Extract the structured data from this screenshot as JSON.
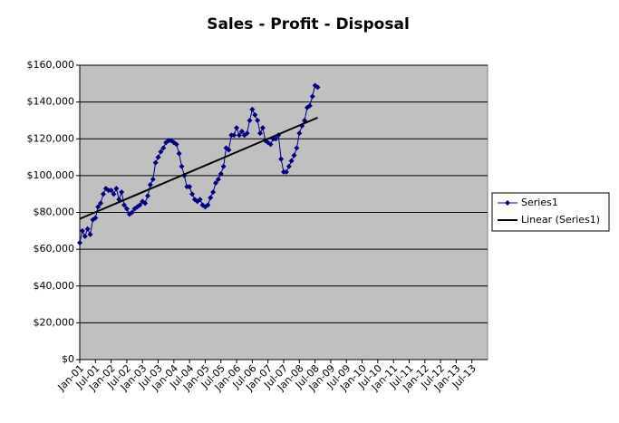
{
  "chart_data": {
    "type": "line",
    "title": "Sales - Profit - Disposal",
    "series": [
      {
        "name": "Series1",
        "color": "#000080",
        "marker": "diamond",
        "x": [
          "Jan-01",
          "Feb-01",
          "Mar-01",
          "Apr-01",
          "May-01",
          "Jun-01",
          "Jul-01",
          "Aug-01",
          "Sep-01",
          "Oct-01",
          "Nov-01",
          "Dec-01",
          "Jan-02",
          "Feb-02",
          "Mar-02",
          "Apr-02",
          "May-02",
          "Jun-02",
          "Jul-02",
          "Aug-02",
          "Sep-02",
          "Oct-02",
          "Nov-02",
          "Dec-02",
          "Jan-03",
          "Feb-03",
          "Mar-03",
          "Apr-03",
          "May-03",
          "Jun-03",
          "Jul-03",
          "Aug-03",
          "Sep-03",
          "Oct-03",
          "Nov-03",
          "Dec-03",
          "Jan-04",
          "Feb-04",
          "Mar-04",
          "Apr-04",
          "May-04",
          "Jun-04",
          "Jul-04",
          "Aug-04",
          "Sep-04",
          "Oct-04",
          "Nov-04",
          "Dec-04",
          "Jan-05",
          "Feb-05",
          "Mar-05",
          "Apr-05",
          "May-05",
          "Jun-05",
          "Jul-05",
          "Aug-05",
          "Sep-05",
          "Oct-05",
          "Nov-05",
          "Dec-05",
          "Jan-06",
          "Feb-06",
          "Mar-06",
          "Apr-06",
          "May-06",
          "Jun-06",
          "Jul-06",
          "Aug-06",
          "Sep-06",
          "Oct-06",
          "Nov-06",
          "Dec-06",
          "Jan-07",
          "Feb-07",
          "Mar-07",
          "Apr-07",
          "May-07",
          "Jun-07",
          "Jul-07",
          "Aug-07",
          "Sep-07",
          "Oct-07",
          "Nov-07",
          "Dec-07",
          "Jan-08",
          "Feb-08",
          "Mar-08",
          "Apr-08",
          "May-08",
          "Jun-08",
          "Jul-08",
          "Aug-08"
        ],
        "values": [
          63500,
          70000,
          67000,
          71000,
          68000,
          76000,
          77000,
          83000,
          85000,
          90000,
          93000,
          92000,
          92000,
          90000,
          93000,
          87000,
          91000,
          84000,
          82000,
          79000,
          80000,
          82000,
          83000,
          84000,
          86000,
          85000,
          89000,
          95000,
          98000,
          107000,
          110000,
          113000,
          115000,
          118000,
          119000,
          119000,
          118000,
          117000,
          112000,
          105000,
          100000,
          94000,
          94000,
          90000,
          87000,
          86000,
          87000,
          84000,
          83000,
          84000,
          88000,
          91000,
          96000,
          98000,
          101000,
          105000,
          115000,
          114000,
          122000,
          122000,
          126000,
          122000,
          124000,
          122000,
          123000,
          130000,
          136000,
          133000,
          130000,
          123000,
          126000,
          119000,
          118000,
          117000,
          120000,
          120000,
          122000,
          109000,
          102000,
          102000,
          105000,
          108000,
          111000,
          115000,
          123000,
          127000,
          130000,
          137000,
          138000,
          143000,
          149000,
          148000
        ]
      },
      {
        "name": "Linear (Series1)",
        "color": "#000000",
        "x": [
          "Jan-01",
          "Aug-08"
        ],
        "values": [
          76500,
          131500
        ]
      }
    ],
    "xlim": [
      "Jan-01",
      "Jan-14"
    ],
    "xticks": [
      "Jan-01",
      "Jul-01",
      "Jan-02",
      "Jul-02",
      "Jan-03",
      "Jul-03",
      "Jan-04",
      "Jul-04",
      "Jan-05",
      "Jul-05",
      "Jan-06",
      "Jul-06",
      "Jan-07",
      "Jul-07",
      "Jan-08",
      "Jul-08",
      "Jan-09",
      "Jul-09",
      "Jan-10",
      "Jul-10",
      "Jan-11",
      "Jul-11",
      "Jan-12",
      "Jul-12",
      "Jan-13",
      "Jul-13"
    ],
    "ylim": [
      0,
      160000
    ],
    "yticks": [
      {
        "value": 0,
        "label": "$0"
      },
      {
        "value": 20000,
        "label": "$20,000"
      },
      {
        "value": 40000,
        "label": "$40,000"
      },
      {
        "value": 60000,
        "label": "$60,000"
      },
      {
        "value": 80000,
        "label": "$80,000"
      },
      {
        "value": 100000,
        "label": "$100,000"
      },
      {
        "value": 120000,
        "label": "$120,000"
      },
      {
        "value": 140000,
        "label": "$140,000"
      },
      {
        "value": 160000,
        "label": "$160,000"
      }
    ],
    "grid": true,
    "legend": "right",
    "plot_background": "#c0c0c0"
  }
}
